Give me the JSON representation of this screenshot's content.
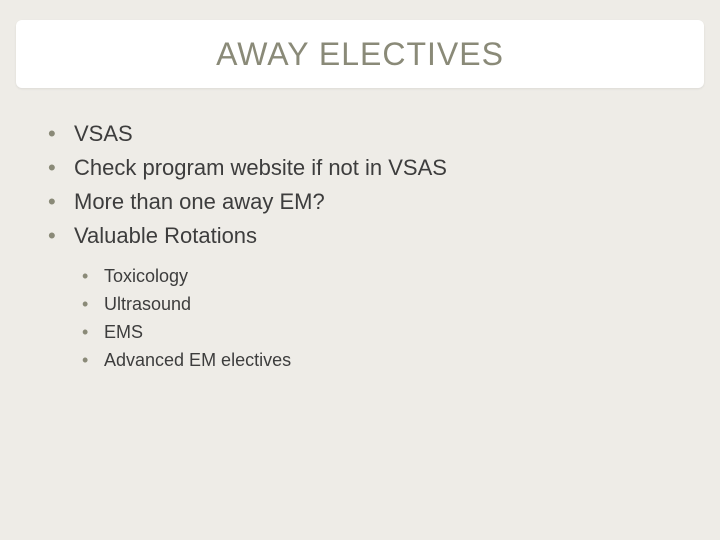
{
  "slide": {
    "title": "AWAY ELECTIVES",
    "background_color": "#eeece7",
    "accent_color": "#8a8a78",
    "title_band_color": "#ffffff",
    "body_text_color": "#3d3d3d",
    "title_fontsize": 32,
    "main_fontsize": 22,
    "sub_fontsize": 18,
    "bullets": {
      "b0": "VSAS",
      "b1": "Check program website if not in VSAS",
      "b2": "More than one away EM?",
      "b3": "Valuable Rotations"
    },
    "sub_bullets": {
      "s0": "Toxicology",
      "s1": "Ultrasound",
      "s2": "EMS",
      "s3": "Advanced EM electives"
    },
    "bullet_char": "•"
  }
}
